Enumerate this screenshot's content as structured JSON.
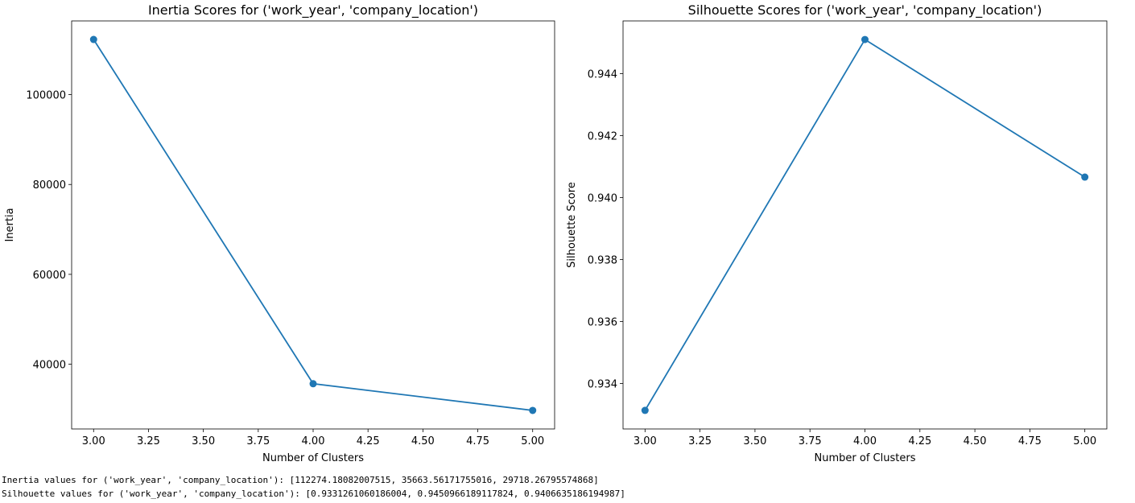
{
  "chart_data": [
    {
      "type": "line",
      "title": "Inertia Scores for ('work_year', 'company_location')",
      "xlabel": "Number of Clusters",
      "ylabel": "Inertia",
      "x": [
        3,
        4,
        5
      ],
      "series": [
        {
          "values": [
            112274.18,
            35663.56,
            29718.27
          ],
          "color": "#1f77b4"
        }
      ],
      "xlim": [
        2.9,
        5.1
      ],
      "ylim": [
        25590,
        116400
      ],
      "xticks": [
        "3.00",
        "3.25",
        "3.50",
        "3.75",
        "4.00",
        "4.25",
        "4.50",
        "4.75",
        "5.00"
      ],
      "yticks": [
        "40000",
        "60000",
        "80000",
        "100000"
      ],
      "grid": false,
      "legend": "none"
    },
    {
      "type": "line",
      "title": "Silhouette Scores for ('work_year', 'company_location')",
      "xlabel": "Number of Clusters",
      "ylabel": "Silhouette Score",
      "x": [
        3,
        4,
        5
      ],
      "series": [
        {
          "values": [
            0.93313,
            0.9451,
            0.94066
          ],
          "color": "#1f77b4"
        }
      ],
      "xlim": [
        2.9,
        5.1
      ],
      "ylim": [
        0.93253,
        0.9457
      ],
      "xticks": [
        "3.00",
        "3.25",
        "3.50",
        "3.75",
        "4.00",
        "4.25",
        "4.50",
        "4.75",
        "5.00"
      ],
      "yticks": [
        "0.934",
        "0.936",
        "0.938",
        "0.940",
        "0.942",
        "0.944"
      ],
      "grid": false,
      "legend": "none"
    }
  ],
  "output": {
    "inertia_line": "Inertia values for ('work_year', 'company_location'): [112274.18082007515, 35663.56171755016, 29718.26795574868]",
    "silhouette_line": "Silhouette values for ('work_year', 'company_location'): [0.9331261060186004, 0.9450966189117824, 0.9406635186194987]"
  }
}
